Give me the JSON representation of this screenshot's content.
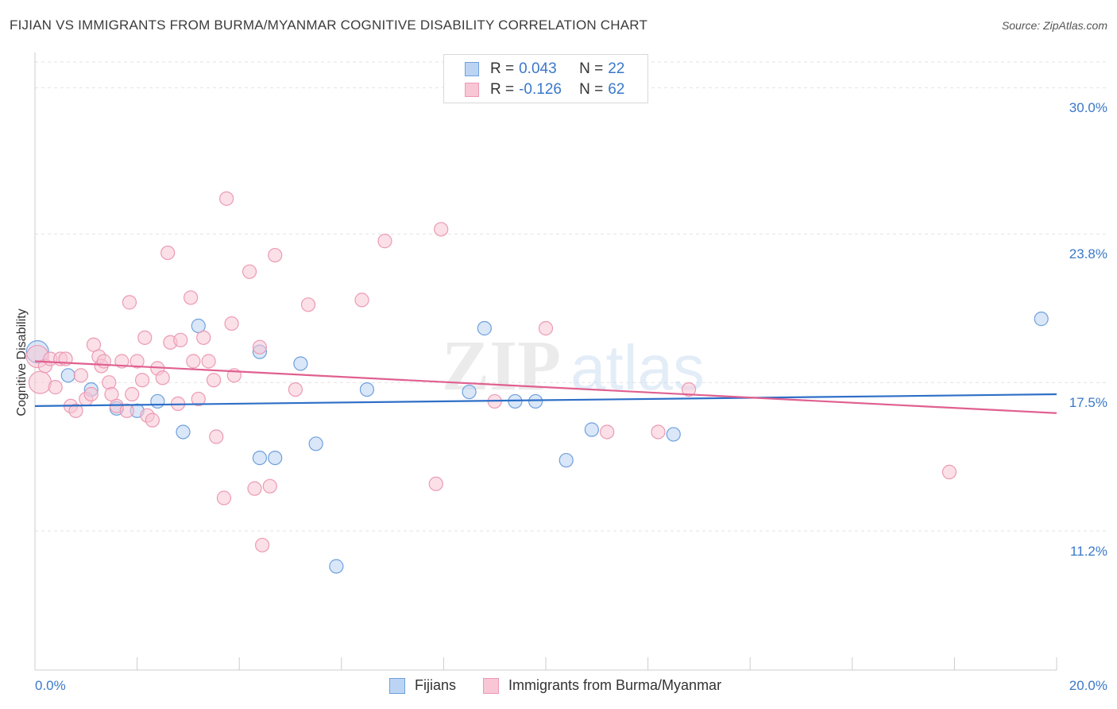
{
  "title": "FIJIAN VS IMMIGRANTS FROM BURMA/MYANMAR COGNITIVE DISABILITY CORRELATION CHART",
  "source": "Source: ZipAtlas.com",
  "watermark": {
    "zip": "ZIP",
    "atlas": "atlas"
  },
  "legend_top": {
    "rows": [
      {
        "r_label": "R =",
        "r_value": "0.043",
        "n_label": "N =",
        "n_value": "22"
      },
      {
        "r_label": "R =",
        "r_value": "-0.126",
        "n_label": "N =",
        "n_value": "62"
      }
    ]
  },
  "chart_data": {
    "type": "scatter",
    "title": "FIJIAN VS IMMIGRANTS FROM BURMA/MYANMAR COGNITIVE DISABILITY CORRELATION CHART",
    "xlabel": "",
    "ylabel": "Cognitive Disability",
    "xlim": [
      0,
      20
    ],
    "ylim": [
      5.3,
      31.5
    ],
    "x_tick_labels": [
      {
        "value": 0,
        "label": "0.0%"
      },
      {
        "value": 20,
        "label": "20.0%"
      }
    ],
    "y_ticks": [
      {
        "value": 11.2,
        "label": "11.2%"
      },
      {
        "value": 17.5,
        "label": "17.5%"
      },
      {
        "value": 23.8,
        "label": "23.8%"
      },
      {
        "value": 30.0,
        "label": "30.0%"
      }
    ],
    "series": [
      {
        "name": "Fijians",
        "color": "#6fa0dd",
        "fill": "#bcd4f3",
        "trend": {
          "x0": 0,
          "y0": 16.5,
          "x1": 20,
          "y1": 17.0,
          "color": "#2e6fc7"
        },
        "points": [
          {
            "x": 0.05,
            "y": 18.8,
            "big": true
          },
          {
            "x": 0.65,
            "y": 17.8
          },
          {
            "x": 1.1,
            "y": 17.2
          },
          {
            "x": 1.6,
            "y": 16.4
          },
          {
            "x": 2.0,
            "y": 16.3
          },
          {
            "x": 2.4,
            "y": 16.7
          },
          {
            "x": 2.9,
            "y": 15.4
          },
          {
            "x": 3.2,
            "y": 19.9
          },
          {
            "x": 4.4,
            "y": 18.8
          },
          {
            "x": 4.4,
            "y": 14.3
          },
          {
            "x": 4.7,
            "y": 14.3
          },
          {
            "x": 5.2,
            "y": 18.3
          },
          {
            "x": 5.5,
            "y": 14.9
          },
          {
            "x": 5.9,
            "y": 9.7
          },
          {
            "x": 6.5,
            "y": 17.2
          },
          {
            "x": 8.5,
            "y": 17.1
          },
          {
            "x": 8.8,
            "y": 19.8
          },
          {
            "x": 9.4,
            "y": 16.7
          },
          {
            "x": 9.8,
            "y": 16.7
          },
          {
            "x": 10.4,
            "y": 14.2
          },
          {
            "x": 10.9,
            "y": 15.5
          },
          {
            "x": 12.5,
            "y": 15.3
          },
          {
            "x": 19.7,
            "y": 20.2
          }
        ]
      },
      {
        "name": "Immigrants from Burma/Myanmar",
        "color": "#ec9ab4",
        "fill": "#f8c6d5",
        "trend": {
          "x0": 0,
          "y0": 18.4,
          "x1": 20,
          "y1": 16.2,
          "color": "#e0608f"
        },
        "points": [
          {
            "x": 0.05,
            "y": 18.6,
            "big": true
          },
          {
            "x": 0.1,
            "y": 17.5,
            "big": true
          },
          {
            "x": 0.2,
            "y": 18.2
          },
          {
            "x": 0.3,
            "y": 18.5
          },
          {
            "x": 0.4,
            "y": 17.3
          },
          {
            "x": 0.5,
            "y": 18.5
          },
          {
            "x": 0.6,
            "y": 18.5
          },
          {
            "x": 0.7,
            "y": 16.5
          },
          {
            "x": 0.8,
            "y": 16.3
          },
          {
            "x": 0.9,
            "y": 17.8
          },
          {
            "x": 1.0,
            "y": 16.8
          },
          {
            "x": 1.1,
            "y": 17.0
          },
          {
            "x": 1.15,
            "y": 19.1
          },
          {
            "x": 1.25,
            "y": 18.6
          },
          {
            "x": 1.3,
            "y": 18.2
          },
          {
            "x": 1.35,
            "y": 18.4
          },
          {
            "x": 1.45,
            "y": 17.5
          },
          {
            "x": 1.5,
            "y": 17.0
          },
          {
            "x": 1.6,
            "y": 16.5
          },
          {
            "x": 1.7,
            "y": 18.4
          },
          {
            "x": 1.8,
            "y": 16.3
          },
          {
            "x": 1.9,
            "y": 17.0
          },
          {
            "x": 1.85,
            "y": 20.9
          },
          {
            "x": 2.0,
            "y": 18.4
          },
          {
            "x": 2.1,
            "y": 17.6
          },
          {
            "x": 2.15,
            "y": 19.4
          },
          {
            "x": 2.2,
            "y": 16.1
          },
          {
            "x": 2.3,
            "y": 15.9
          },
          {
            "x": 2.4,
            "y": 18.1
          },
          {
            "x": 2.5,
            "y": 17.7
          },
          {
            "x": 2.6,
            "y": 23.0
          },
          {
            "x": 2.65,
            "y": 19.2
          },
          {
            "x": 2.8,
            "y": 16.6
          },
          {
            "x": 2.85,
            "y": 19.3
          },
          {
            "x": 3.05,
            "y": 21.1
          },
          {
            "x": 3.1,
            "y": 18.4
          },
          {
            "x": 3.2,
            "y": 16.8
          },
          {
            "x": 3.3,
            "y": 19.4
          },
          {
            "x": 3.4,
            "y": 18.4
          },
          {
            "x": 3.5,
            "y": 17.6
          },
          {
            "x": 3.55,
            "y": 15.2
          },
          {
            "x": 3.7,
            "y": 12.6
          },
          {
            "x": 3.75,
            "y": 25.3
          },
          {
            "x": 3.85,
            "y": 20.0
          },
          {
            "x": 3.9,
            "y": 17.8
          },
          {
            "x": 4.2,
            "y": 22.2
          },
          {
            "x": 4.3,
            "y": 13.0
          },
          {
            "x": 4.4,
            "y": 19.0
          },
          {
            "x": 4.45,
            "y": 10.6
          },
          {
            "x": 4.6,
            "y": 13.1
          },
          {
            "x": 4.7,
            "y": 22.9
          },
          {
            "x": 5.1,
            "y": 17.2
          },
          {
            "x": 5.35,
            "y": 20.8
          },
          {
            "x": 6.4,
            "y": 21.0
          },
          {
            "x": 6.85,
            "y": 23.5
          },
          {
            "x": 7.85,
            "y": 13.2
          },
          {
            "x": 7.95,
            "y": 24.0
          },
          {
            "x": 9.0,
            "y": 16.7
          },
          {
            "x": 10.0,
            "y": 19.8
          },
          {
            "x": 11.2,
            "y": 15.4
          },
          {
            "x": 12.2,
            "y": 15.4
          },
          {
            "x": 12.8,
            "y": 17.2
          },
          {
            "x": 17.9,
            "y": 13.7
          }
        ]
      }
    ]
  }
}
